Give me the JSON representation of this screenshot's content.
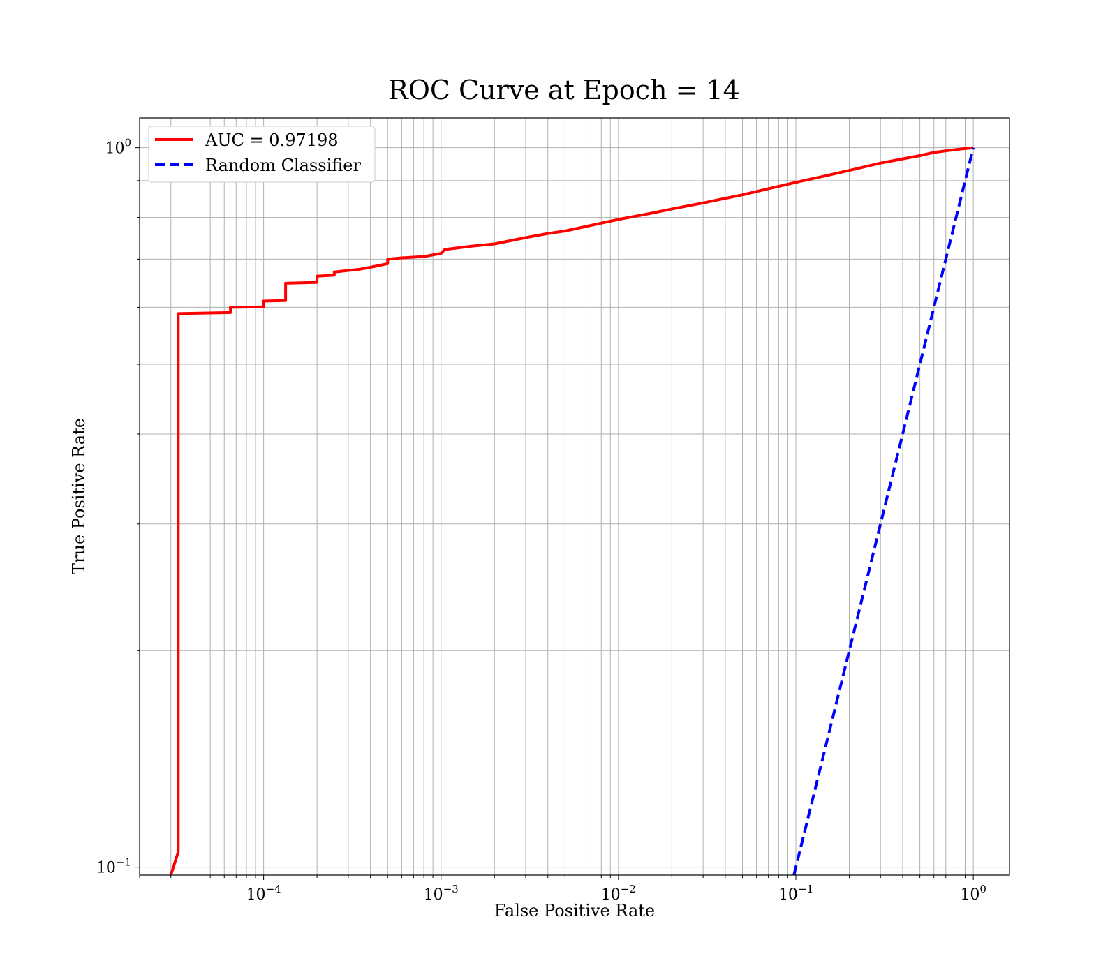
{
  "chart_data": {
    "type": "line",
    "title": "ROC Curve at Epoch = 14",
    "xlabel": "False Positive Rate",
    "ylabel": "True Positive Rate",
    "xscale": "log",
    "yscale": "log",
    "xlim": [
      2e-05,
      1.6
    ],
    "ylim": [
      0.0975,
      1.1
    ],
    "grid": "both",
    "legend_position": "upper-left",
    "x_major_ticks": [
      {
        "value": 0.0001,
        "base": "10",
        "exp": "−4"
      },
      {
        "value": 0.001,
        "base": "10",
        "exp": "−3"
      },
      {
        "value": 0.01,
        "base": "10",
        "exp": "−2"
      },
      {
        "value": 0.1,
        "base": "10",
        "exp": "−1"
      },
      {
        "value": 1,
        "base": "10",
        "exp": "0"
      }
    ],
    "y_major_ticks": [
      {
        "value": 0.1,
        "base": "10",
        "exp": "−1"
      },
      {
        "value": 1,
        "base": "10",
        "exp": "0"
      }
    ],
    "series": [
      {
        "name": "AUC = 0.97198",
        "color": "#ff0000",
        "style": "solid",
        "points": [
          [
            3e-05,
            0.0975
          ],
          [
            3.3e-05,
            0.105
          ],
          [
            3.3e-05,
            0.588
          ],
          [
            6.5e-05,
            0.59
          ],
          [
            6.5e-05,
            0.6
          ],
          [
            0.0001,
            0.601
          ],
          [
            0.0001,
            0.612
          ],
          [
            0.000133,
            0.613
          ],
          [
            0.000133,
            0.648
          ],
          [
            0.0002,
            0.65
          ],
          [
            0.0002,
            0.663
          ],
          [
            0.00025,
            0.665
          ],
          [
            0.00025,
            0.672
          ],
          [
            0.00035,
            0.678
          ],
          [
            0.0004,
            0.682
          ],
          [
            0.0005,
            0.69
          ],
          [
            0.0005,
            0.7
          ],
          [
            0.0006,
            0.703
          ],
          [
            0.0008,
            0.706
          ],
          [
            0.001,
            0.713
          ],
          [
            0.00105,
            0.722
          ],
          [
            0.0015,
            0.73
          ],
          [
            0.002,
            0.735
          ],
          [
            0.003,
            0.75
          ],
          [
            0.004,
            0.76
          ],
          [
            0.005,
            0.766
          ],
          [
            0.007,
            0.78
          ],
          [
            0.01,
            0.795
          ],
          [
            0.015,
            0.81
          ],
          [
            0.02,
            0.822
          ],
          [
            0.03,
            0.838
          ],
          [
            0.05,
            0.86
          ],
          [
            0.07,
            0.877
          ],
          [
            0.1,
            0.895
          ],
          [
            0.15,
            0.915
          ],
          [
            0.2,
            0.93
          ],
          [
            0.3,
            0.952
          ],
          [
            0.4,
            0.965
          ],
          [
            0.5,
            0.975
          ],
          [
            0.6,
            0.985
          ],
          [
            0.7,
            0.99
          ],
          [
            0.85,
            0.996
          ],
          [
            1.0,
            1.0
          ]
        ]
      },
      {
        "name": "Random Classifier",
        "color": "#0000ff",
        "style": "dashed",
        "points": [
          [
            0.0975,
            0.0975
          ],
          [
            1.0,
            1.0
          ]
        ]
      }
    ]
  }
}
